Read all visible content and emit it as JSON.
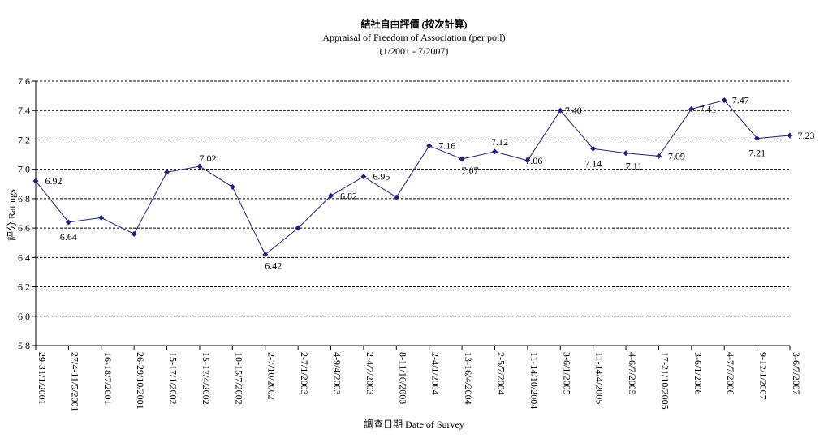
{
  "chart_data": {
    "type": "line",
    "title": "結社自由評價 (按次計算)",
    "subtitle": "Appraisal of Freedom of Association (per poll)",
    "subtitle2": "(1/2001 - 7/2007)",
    "xlabel": "調查日期 Date of Survey",
    "ylabel": "評分 Ratings",
    "ylim": [
      5.8,
      7.6
    ],
    "yticks": [
      "5.8",
      "6.0",
      "6.2",
      "6.4",
      "6.6",
      "6.8",
      "7.0",
      "7.2",
      "7.4",
      "7.6"
    ],
    "grid": true,
    "grid_style": "dashed",
    "line_color": "#1f1f7a",
    "marker": "diamond",
    "categories": [
      "29-31/1/2001",
      "27/4-11/5/2001",
      "16-18/7/2001",
      "26-29/10/2001",
      "15-17/1/2002",
      "15-17/4/2002",
      "10-15/7/2002",
      "2-7/10/2002",
      "2-7/1/2003",
      "4-9/4/2003",
      "2-4/7/2003",
      "8-11/10/2003",
      "2-4/1/2004",
      "13-16/4/2004",
      "2-5/7/2004",
      "11-14/10/2004",
      "3-6/1/2005",
      "11-14/4/2005",
      "4-6/7/2005",
      "17-21/10/2005",
      "3-6/1/2006",
      "4-7/7/2006",
      "9-12/1/2007",
      "3-6/7/2007"
    ],
    "values": [
      6.92,
      6.64,
      6.67,
      6.56,
      6.98,
      7.02,
      6.88,
      6.42,
      6.6,
      6.82,
      6.95,
      6.81,
      7.16,
      7.07,
      7.12,
      7.06,
      7.4,
      7.14,
      7.11,
      7.09,
      7.41,
      7.47,
      7.21,
      7.23
    ],
    "data_labels": [
      {
        "index": 0,
        "text": "6.92"
      },
      {
        "index": 1,
        "text": "6.64"
      },
      {
        "index": 5,
        "text": "7.02"
      },
      {
        "index": 7,
        "text": "6.42"
      },
      {
        "index": 9,
        "text": "6.82"
      },
      {
        "index": 10,
        "text": "6.95"
      },
      {
        "index": 12,
        "text": "7.16"
      },
      {
        "index": 13,
        "text": "7.07"
      },
      {
        "index": 14,
        "text": "7.12"
      },
      {
        "index": 15,
        "text": "7.06"
      },
      {
        "index": 16,
        "text": "7.40"
      },
      {
        "index": 17,
        "text": "7.14"
      },
      {
        "index": 18,
        "text": "7.11"
      },
      {
        "index": 19,
        "text": "7.09"
      },
      {
        "index": 20,
        "text": "7.41"
      },
      {
        "index": 21,
        "text": "7.47"
      },
      {
        "index": 22,
        "text": "7.21"
      },
      {
        "index": 23,
        "text": "7.23"
      }
    ]
  }
}
